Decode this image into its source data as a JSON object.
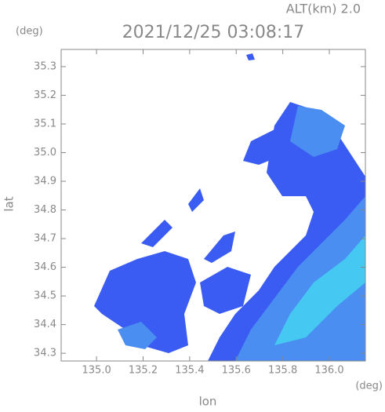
{
  "chart_data": {
    "type": "map",
    "title": "2021/12/25 03:08:17",
    "annotation": "ALT(km)  2.0",
    "y_unit": "(deg)",
    "x_unit": "(deg)",
    "xlabel": "lon",
    "ylabel": "lat",
    "xlim": [
      134.848,
      136.155
    ],
    "ylim": [
      34.273,
      35.36
    ],
    "xticks": [
      {
        "value": 135.0,
        "label": "135.0"
      },
      135.2,
      135.4,
      135.6,
      135.8,
      {
        "value": 136.0,
        "label": "136.0"
      }
    ],
    "yticks": [
      34.3,
      34.4,
      34.5,
      34.6,
      34.7,
      34.8,
      34.9,
      {
        "value": 35.0,
        "label": "35.0"
      },
      35.1,
      35.2,
      35.3
    ]
  }
}
